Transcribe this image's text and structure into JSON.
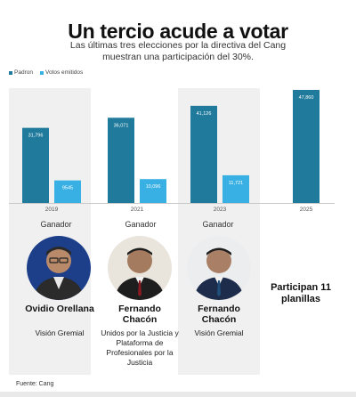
{
  "title": "Un tercio acude a votar",
  "subtitle": "Las últimas tres elecciones por la directiva del Cang muestran una participación del 30%.",
  "colors": {
    "padron": "#1f7a9c",
    "votos": "#38b0e3",
    "panel": "#f0f0f0"
  },
  "chart_data": {
    "type": "bar",
    "categories": [
      "2019",
      "2021",
      "2023",
      "2025"
    ],
    "series": [
      {
        "name": "Padron",
        "values": [
          31796,
          36071,
          41126,
          47860
        ],
        "labels": [
          "31,796",
          "36,071",
          "41,126",
          "47,860"
        ]
      },
      {
        "name": "Votos emitidos",
        "values": [
          9545,
          10096,
          11721,
          null
        ],
        "labels": [
          "9545",
          "10,096",
          "11,721",
          ""
        ]
      }
    ],
    "legend": "top-left",
    "grid": false
  },
  "winners": [
    {
      "label": "Ganador",
      "name": "Ovidio Orellana",
      "party": "Visión Gremial",
      "avatar": "avatar-ovidio-orellana"
    },
    {
      "label": "Ganador",
      "name": "Fernando Chacón",
      "party": "Unidos por la Justicia y Plataforma de Profesionales por la Justicia",
      "avatar": "avatar-fernando-chacon"
    },
    {
      "label": "Ganador",
      "name": "Fernando Chacón",
      "party": "Visión Gremial",
      "avatar": "avatar-fernando-chacon"
    }
  ],
  "participan": "Participan 11 planillas",
  "fuente": "Fuente: Cang"
}
